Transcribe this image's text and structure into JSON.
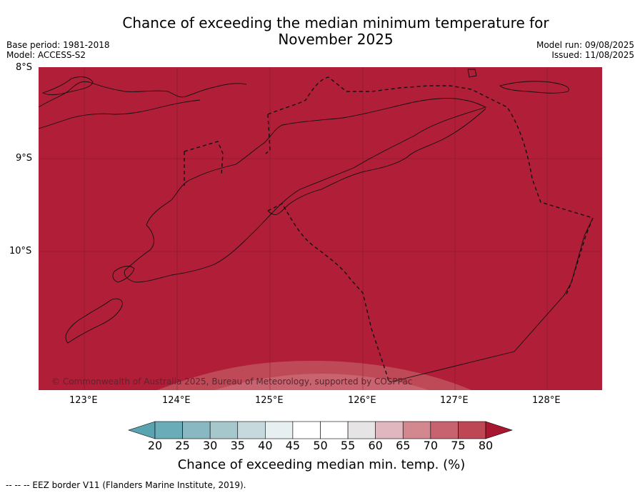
{
  "header": {
    "title_line1": "Chance of exceeding the median minimum temperature for",
    "title_line2": "November 2025",
    "base_period": "Base period: 1981-2018",
    "model": "Model: ACCESS-S2",
    "model_run": "Model run: 09/08/2025",
    "issued": "Issued: 11/08/2025"
  },
  "map": {
    "lat_labels": [
      "8°S",
      "9°S",
      "10°S"
    ],
    "lon_labels": [
      "123°E",
      "124°E",
      "125°E",
      "126°E",
      "127°E",
      "128°E"
    ],
    "dominant_category": "80%+",
    "dominant_color": "#b01e38",
    "copyright": "© Commonwealth of Australia 2025, Bureau of Meteorology, supported by COSPPac"
  },
  "colorbar": {
    "ticks": [
      "20",
      "25",
      "30",
      "35",
      "40",
      "45",
      "50",
      "55",
      "60",
      "65",
      "70",
      "75",
      "80"
    ],
    "colors": [
      "#5aa3b0",
      "#6aadb9",
      "#8ab8c2",
      "#a6c8cc",
      "#c6d9dc",
      "#e8eff0",
      "#ffffff",
      "#ffffff",
      "#e6e4e5",
      "#e0b7be",
      "#d3888f",
      "#c7636e",
      "#be4755",
      "#a8162f"
    ],
    "label": "Chance of exceeding median min. temp. (%)"
  },
  "footer": {
    "legend": "--  --  -- EEZ border V11 (Flanders Marine Institute, 2019)."
  }
}
